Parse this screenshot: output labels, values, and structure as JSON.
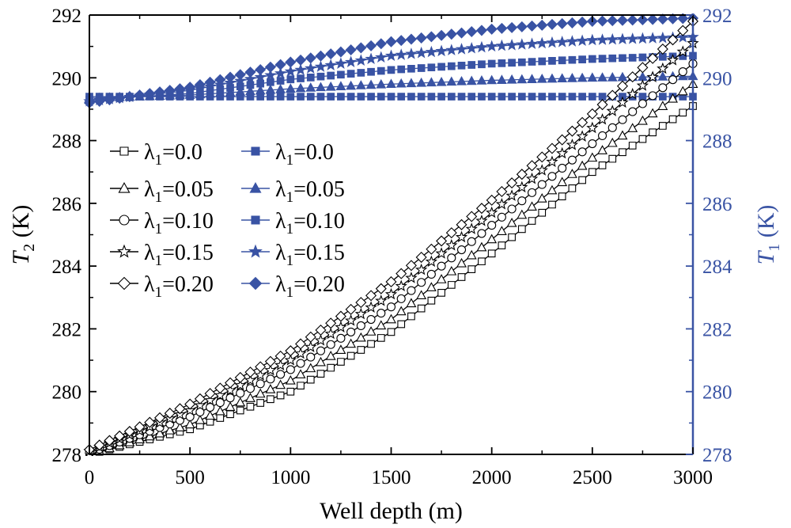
{
  "chart_data": {
    "type": "line",
    "x_axis": {
      "label": "Well depth (m)",
      "min": 0,
      "max": 3000,
      "ticks": [
        0,
        500,
        1000,
        1500,
        2000,
        2500,
        3000
      ],
      "tick_labels": [
        "0",
        "500",
        "1000",
        "1500",
        "2000",
        "2500",
        "3000"
      ]
    },
    "y_left": {
      "label_symbol": "T",
      "label_sub": "2",
      "label_unit": " (K)",
      "min": 278,
      "max": 292,
      "ticks": [
        278,
        280,
        282,
        284,
        286,
        288,
        290,
        292
      ],
      "tick_labels": [
        "278",
        "280",
        "282",
        "284",
        "286",
        "288",
        "290",
        "292"
      ],
      "color": "#000000"
    },
    "y_right": {
      "label_symbol": "T",
      "label_sub": "1",
      "label_unit": " (K)",
      "min": 278,
      "max": 292,
      "ticks": [
        278,
        280,
        282,
        284,
        286,
        288,
        290,
        292
      ],
      "tick_labels": [
        "278",
        "280",
        "282",
        "284",
        "286",
        "288",
        "290",
        "292"
      ],
      "color": "#3953a4"
    },
    "series": [
      {
        "name": "λ1=0.0",
        "lambda_symbol": "λ",
        "lambda_sub": "1",
        "lambda_value": "=0.0",
        "axis": "T2",
        "marker": "square",
        "filled": false,
        "color": "#000000",
        "x": [
          0,
          500,
          1000,
          1500,
          2000,
          2500,
          3000
        ],
        "y": [
          278.0,
          278.8,
          280.0,
          281.9,
          284.4,
          287.0,
          289.1
        ]
      },
      {
        "name": "λ1=0.05",
        "lambda_symbol": "λ",
        "lambda_sub": "1",
        "lambda_value": "=0.05",
        "axis": "T2",
        "marker": "triangle",
        "filled": false,
        "color": "#000000",
        "x": [
          0,
          500,
          1000,
          1500,
          2000,
          2500,
          3000
        ],
        "y": [
          278.0,
          278.95,
          280.35,
          282.3,
          284.85,
          287.45,
          289.8
        ]
      },
      {
        "name": "λ1=0.10",
        "lambda_symbol": "λ",
        "lambda_sub": "1",
        "lambda_value": "=0.10",
        "axis": "T2",
        "marker": "circle",
        "filled": false,
        "color": "#000000",
        "x": [
          0,
          500,
          1000,
          1500,
          2000,
          2500,
          3000
        ],
        "y": [
          278.05,
          279.2,
          280.7,
          282.7,
          285.3,
          287.9,
          290.45
        ]
      },
      {
        "name": "λ1=0.15",
        "lambda_symbol": "λ",
        "lambda_sub": "1",
        "lambda_value": "=0.15",
        "axis": "T2",
        "marker": "star",
        "filled": false,
        "color": "#000000",
        "x": [
          0,
          500,
          1000,
          1500,
          2000,
          2500,
          3000
        ],
        "y": [
          278.1,
          279.4,
          281.0,
          283.1,
          285.7,
          288.4,
          291.1
        ]
      },
      {
        "name": "λ1=0.20",
        "lambda_symbol": "λ",
        "lambda_sub": "1",
        "lambda_value": "=0.20",
        "axis": "T2",
        "marker": "diamond",
        "filled": false,
        "color": "#000000",
        "x": [
          0,
          500,
          1000,
          1500,
          2000,
          2500,
          3000
        ],
        "y": [
          278.15,
          279.6,
          281.3,
          283.5,
          286.1,
          288.85,
          291.8
        ]
      },
      {
        "name": "λ1=0.0",
        "lambda_symbol": "λ",
        "lambda_sub": "1",
        "lambda_value": "=0.0",
        "axis": "T1",
        "marker": "square",
        "filled": true,
        "color": "#3953a4",
        "x": [
          0,
          500,
          1000,
          1500,
          2000,
          2500,
          3000
        ],
        "y": [
          289.4,
          289.4,
          289.4,
          289.4,
          289.4,
          289.4,
          289.4
        ]
      },
      {
        "name": "λ1=0.05",
        "lambda_symbol": "λ",
        "lambda_sub": "1",
        "lambda_value": "=0.05",
        "axis": "T1",
        "marker": "triangle",
        "filled": true,
        "color": "#3953a4",
        "x": [
          0,
          500,
          1000,
          1500,
          2000,
          2500,
          3000
        ],
        "y": [
          289.35,
          289.45,
          289.65,
          289.8,
          289.92,
          290.0,
          290.05
        ]
      },
      {
        "name": "λ1=0.10",
        "lambda_symbol": "λ",
        "lambda_sub": "1",
        "lambda_value": "=0.10",
        "axis": "T1",
        "marker": "square",
        "filled": true,
        "color": "#3953a4",
        "x": [
          0,
          500,
          1000,
          1500,
          2000,
          2500,
          3000
        ],
        "y": [
          289.3,
          289.5,
          289.95,
          290.25,
          290.45,
          290.6,
          290.7
        ]
      },
      {
        "name": "λ1=0.15",
        "lambda_symbol": "λ",
        "lambda_sub": "1",
        "lambda_value": "=0.15",
        "axis": "T1",
        "marker": "star",
        "filled": true,
        "color": "#3953a4",
        "x": [
          0,
          500,
          1000,
          1500,
          2000,
          2500,
          3000
        ],
        "y": [
          289.25,
          289.6,
          290.2,
          290.7,
          291.0,
          291.2,
          291.3
        ]
      },
      {
        "name": "λ1=0.20",
        "lambda_symbol": "λ",
        "lambda_sub": "1",
        "lambda_value": "=0.20",
        "axis": "T1",
        "marker": "diamond",
        "filled": true,
        "color": "#3953a4",
        "x": [
          0,
          500,
          1000,
          1500,
          2000,
          2500,
          3000
        ],
        "y": [
          289.2,
          289.7,
          290.5,
          291.15,
          291.55,
          291.8,
          291.9
        ]
      }
    ],
    "legend": {
      "placement": "left-middle",
      "columns": 2
    }
  }
}
